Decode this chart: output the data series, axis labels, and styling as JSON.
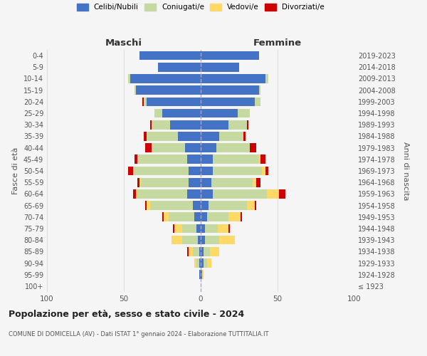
{
  "age_groups": [
    "100+",
    "95-99",
    "90-94",
    "85-89",
    "80-84",
    "75-79",
    "70-74",
    "65-69",
    "60-64",
    "55-59",
    "50-54",
    "45-49",
    "40-44",
    "35-39",
    "30-34",
    "25-29",
    "20-24",
    "15-19",
    "10-14",
    "5-9",
    "0-4"
  ],
  "birth_years": [
    "≤ 1923",
    "1924-1928",
    "1929-1933",
    "1934-1938",
    "1939-1943",
    "1944-1948",
    "1949-1953",
    "1954-1958",
    "1959-1963",
    "1964-1968",
    "1969-1973",
    "1974-1978",
    "1979-1983",
    "1984-1988",
    "1989-1993",
    "1994-1998",
    "1999-2003",
    "2004-2008",
    "2009-2013",
    "2014-2018",
    "2019-2023"
  ],
  "colors": {
    "celibi": "#4472c4",
    "coniugati": "#c5d9a0",
    "vedovi": "#ffd966",
    "divorziati": "#cc0000"
  },
  "maschi": {
    "celibi": [
      0,
      1,
      1,
      1,
      2,
      3,
      4,
      5,
      9,
      8,
      8,
      9,
      10,
      15,
      20,
      25,
      35,
      42,
      46,
      28,
      40
    ],
    "coniugati": [
      0,
      0,
      2,
      4,
      10,
      9,
      17,
      28,
      32,
      31,
      36,
      32,
      22,
      20,
      12,
      5,
      2,
      1,
      1,
      0,
      0
    ],
    "vedovi": [
      0,
      0,
      1,
      3,
      7,
      5,
      3,
      2,
      1,
      1,
      0,
      0,
      0,
      0,
      0,
      0,
      0,
      0,
      0,
      0,
      0
    ],
    "divorziati": [
      0,
      0,
      0,
      1,
      0,
      1,
      1,
      1,
      2,
      1,
      3,
      2,
      4,
      2,
      1,
      0,
      1,
      0,
      0,
      0,
      0
    ]
  },
  "femmine": {
    "celibi": [
      0,
      1,
      2,
      2,
      3,
      3,
      4,
      5,
      8,
      7,
      8,
      8,
      10,
      12,
      18,
      24,
      35,
      38,
      42,
      25,
      38
    ],
    "coniugati": [
      0,
      0,
      2,
      4,
      9,
      8,
      14,
      25,
      35,
      27,
      32,
      30,
      22,
      16,
      12,
      8,
      4,
      1,
      2,
      0,
      0
    ],
    "vedovi": [
      0,
      1,
      3,
      6,
      10,
      7,
      8,
      5,
      8,
      2,
      2,
      1,
      0,
      0,
      0,
      0,
      0,
      0,
      0,
      0,
      0
    ],
    "divorziati": [
      0,
      0,
      0,
      0,
      0,
      1,
      1,
      1,
      4,
      3,
      2,
      3,
      4,
      1,
      1,
      0,
      0,
      0,
      0,
      0,
      0
    ]
  },
  "title": "Popolazione per età, sesso e stato civile - 2024",
  "subtitle": "COMUNE DI DOMICELLA (AV) - Dati ISTAT 1° gennaio 2024 - Elaborazione TUTTITALIA.IT",
  "xlabel_left": "Maschi",
  "xlabel_right": "Femmine",
  "ylabel_left": "Fasce di età",
  "ylabel_right": "Anni di nascita",
  "xlim": 100,
  "legend_labels": [
    "Celibi/Nubili",
    "Coniugati/e",
    "Vedovi/e",
    "Divorziati/e"
  ],
  "background_color": "#f5f5f5",
  "grid_color": "#dddddd",
  "title_color": "#222222",
  "subtitle_color": "#555555",
  "label_color": "#555555",
  "tick_color": "#555555"
}
